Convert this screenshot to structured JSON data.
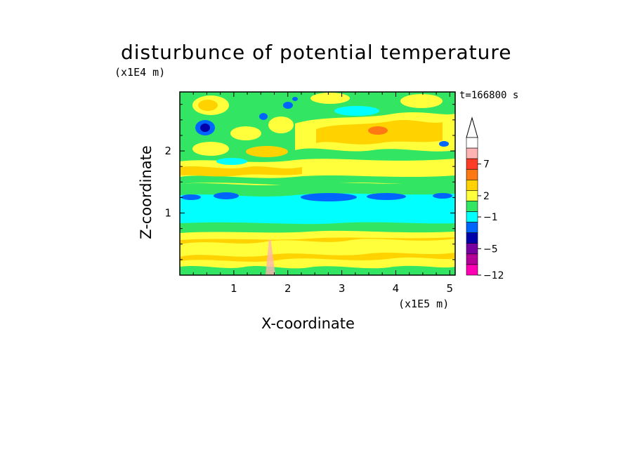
{
  "chart_data": {
    "type": "contour",
    "title": "disturbunce of potential temperature",
    "xlabel": "X-coordinate",
    "ylabel": "Z-coordinate",
    "x_unit": "(x1E5 m)",
    "y_unit": "(x1E4 m)",
    "time_label": "t=166800 s",
    "xlim": [
      0,
      5.1
    ],
    "ylim": [
      0,
      2.95
    ],
    "x_ticks": [
      "1",
      "2",
      "3",
      "4",
      "5"
    ],
    "y_ticks": [
      "1",
      "2"
    ],
    "colorbar": {
      "labels": [
        "7",
        "2",
        "−1",
        "−5",
        "−12"
      ],
      "colors": [
        "#ffffff",
        "#ffb4b4",
        "#ff3c28",
        "#ff7814",
        "#ffd200",
        "#ffff3c",
        "#32e664",
        "#00ffff",
        "#0064ff",
        "#0000aa",
        "#7800a0",
        "#b40096",
        "#ff00b4"
      ]
    },
    "fields": [
      {
        "name": "cyan band",
        "x_range": [
          0,
          5.1
        ],
        "z_range": [
          0.85,
          1.5
        ],
        "level": "-1 to 0"
      },
      {
        "name": "blue streaks",
        "z_approx": 1.3,
        "level": "-5 to -2"
      },
      {
        "name": "warm layer lower",
        "z_range": [
          0,
          0.75
        ],
        "level": "1 to 2"
      },
      {
        "name": "warm layer upper",
        "z_range": [
          1.6,
          2.95
        ],
        "level": "2 to 5"
      }
    ]
  }
}
